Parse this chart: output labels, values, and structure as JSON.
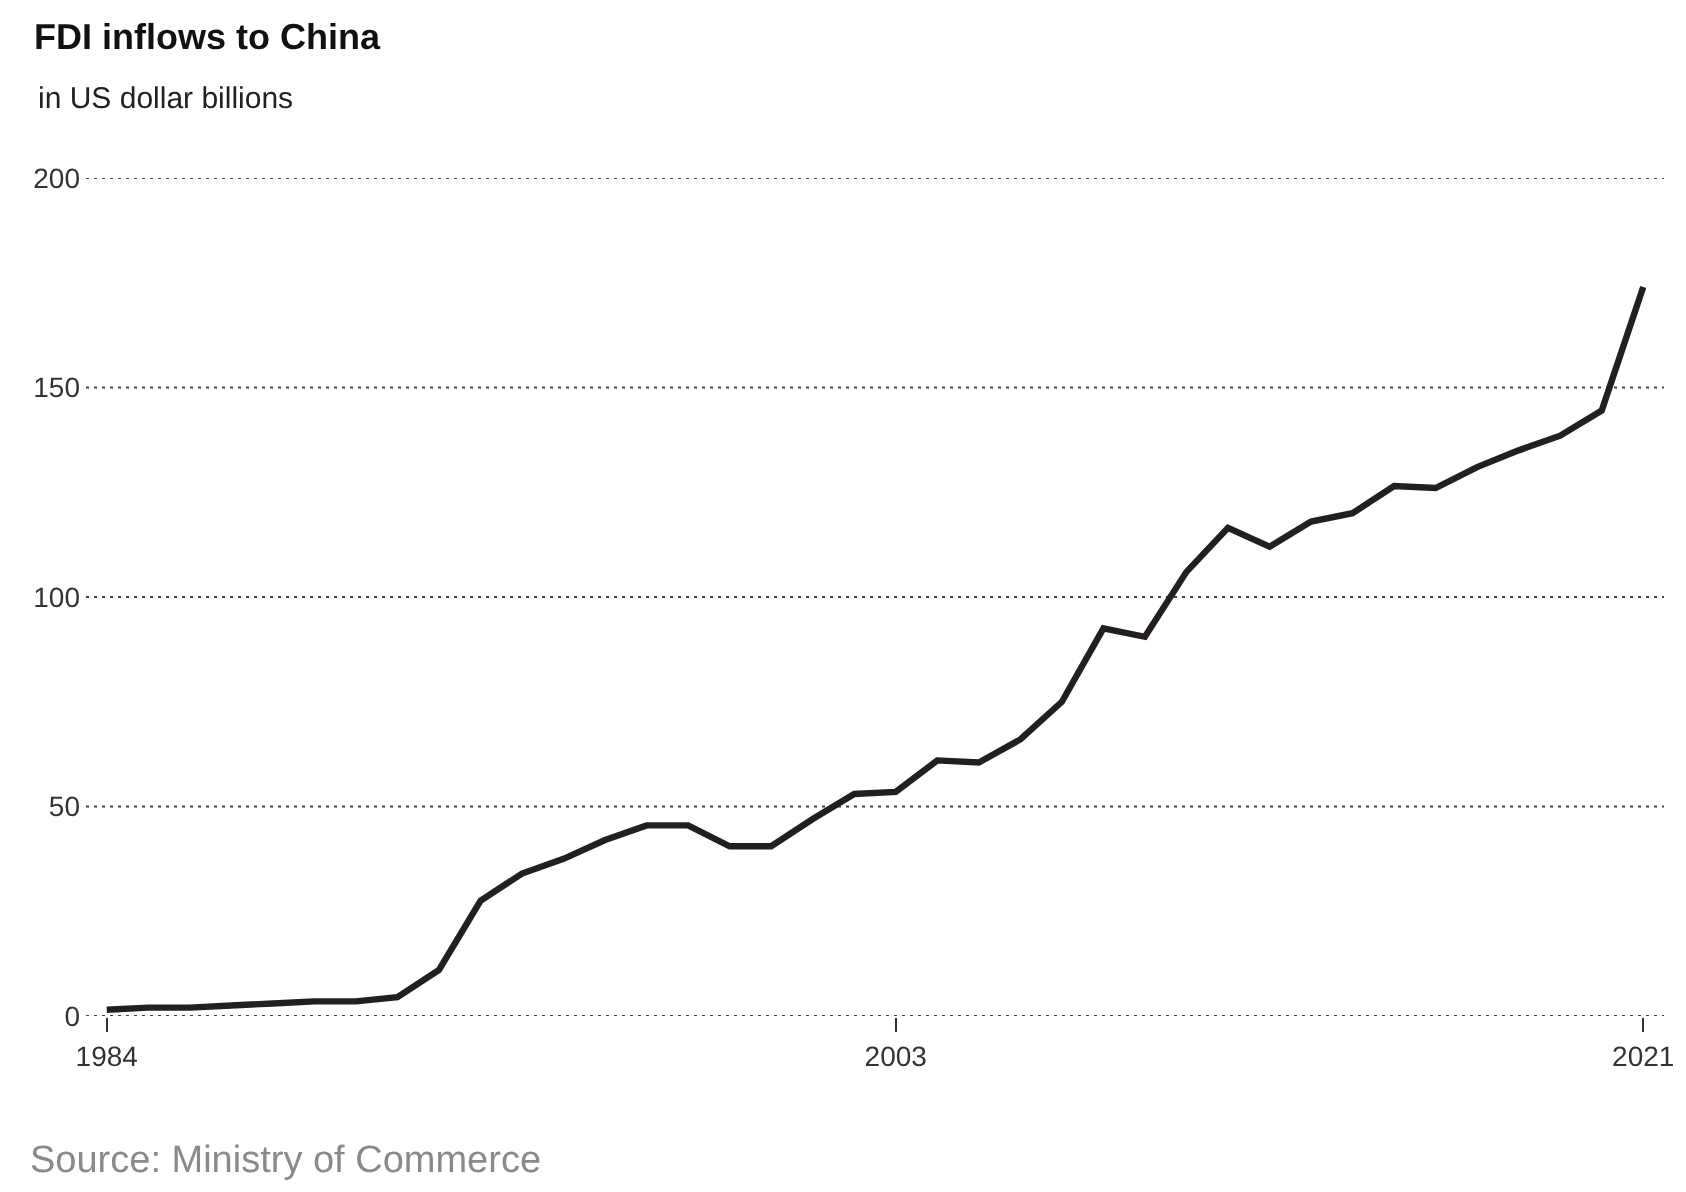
{
  "chart_data": {
    "type": "line",
    "title": "FDI inflows to China",
    "subtitle": "in US dollar billions",
    "annotations": [
      "Source: Ministry of Commerce"
    ],
    "x": [
      1984,
      1985,
      1986,
      1987,
      1988,
      1989,
      1990,
      1991,
      1992,
      1993,
      1994,
      1995,
      1996,
      1997,
      1998,
      1999,
      2000,
      2001,
      2002,
      2003,
      2004,
      2005,
      2006,
      2007,
      2008,
      2009,
      2010,
      2011,
      2012,
      2013,
      2014,
      2015,
      2016,
      2017,
      2018,
      2019,
      2020,
      2021
    ],
    "series": [
      {
        "color": "#231f20",
        "values": [
          1.5,
          2,
          2,
          2.5,
          3,
          3.5,
          3.5,
          4.5,
          11,
          27.5,
          34,
          37.5,
          42,
          45.5,
          45.5,
          40.5,
          40.5,
          47,
          53,
          53.5,
          61,
          60.5,
          66,
          75,
          92.5,
          90.5,
          106,
          116.5,
          112,
          118,
          120,
          126.5,
          126,
          131,
          135,
          138.5,
          144.5,
          174
        ]
      }
    ],
    "xlim": [
      1983.5,
      2021.5
    ],
    "xticks": [
      1984,
      2003,
      2021
    ],
    "ylim": [
      0,
      200
    ],
    "yticks": [
      0,
      50,
      100,
      150,
      200
    ],
    "grid": "y"
  }
}
